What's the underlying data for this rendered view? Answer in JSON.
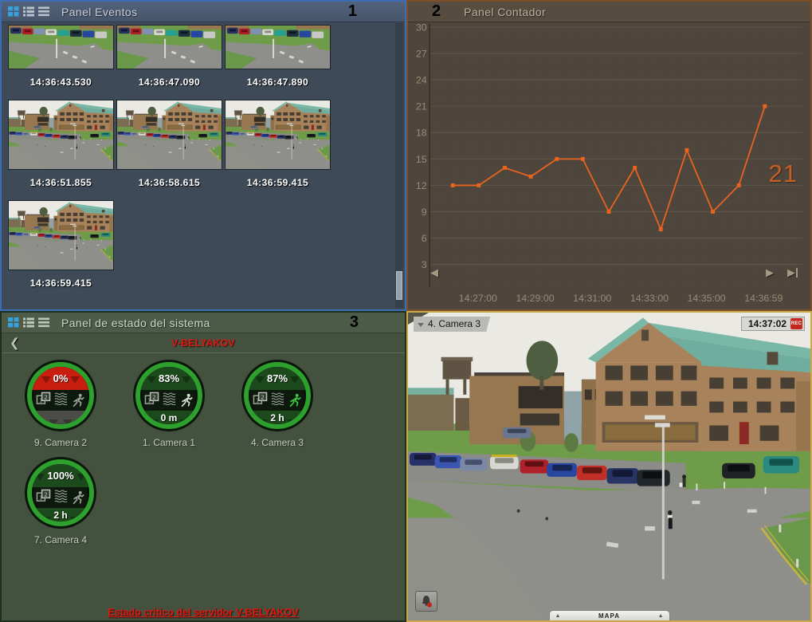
{
  "colors": {
    "eventos_accent": "#3d6db5",
    "contador_accent": "#7c4f28",
    "estado_accent": "#2e4f2e",
    "camera_accent": "#c9a94b",
    "chart_line": "#e8641e",
    "alert_red": "#e01810",
    "status_ok_green": "#2da02d",
    "status_alarm_red": "#c81e10"
  },
  "panels": {
    "eventos": {
      "number": "1",
      "title": "Panel Eventos",
      "events": [
        {
          "time": "14:36:43.530",
          "scene": "parking"
        },
        {
          "time": "14:36:47.090",
          "scene": "parking"
        },
        {
          "time": "14:36:47.890",
          "scene": "parking"
        },
        {
          "time": "14:36:51.855",
          "scene": "building"
        },
        {
          "time": "14:36:58.615",
          "scene": "building"
        },
        {
          "time": "14:36:59.415",
          "scene": "building"
        },
        {
          "time": "14:36:59.415",
          "scene": "building"
        }
      ]
    },
    "contador": {
      "number": "2",
      "title": "Panel Contador",
      "current_value": "21"
    },
    "estado": {
      "number": "3",
      "title": "Panel de estado del sistema",
      "server_name": "V-BELYAKOV",
      "alert_text": "Estado critico del servidor V-BELYAKOV",
      "gauges": [
        {
          "label": "9. Camera 2",
          "top_value": "0%",
          "top_color": "#c81e10",
          "bottom_value": "",
          "bottom_color": "#4c4c48",
          "man_color": "#9aa29a"
        },
        {
          "label": "1. Camera 1",
          "top_value": "83%",
          "top_color": "#1d4a1d",
          "bottom_value": "0 m",
          "bottom_color": "#1d4a1d",
          "man_color": "#d8ded6"
        },
        {
          "label": "4. Camera 3",
          "top_value": "87%",
          "top_color": "#1d4a1d",
          "bottom_value": "2 h",
          "bottom_color": "#1d4a1d",
          "man_color": "#3ec43e"
        },
        {
          "label": "7. Camera 4",
          "top_value": "100%",
          "top_color": "#1d4a1d",
          "bottom_value": "2 h",
          "bottom_color": "#1d4a1d",
          "man_color": "#9aa29a"
        }
      ]
    },
    "camera": {
      "label": "4. Camera 3",
      "time": "14:37:02",
      "rec_label": "REC",
      "map_label": "MAPA"
    }
  },
  "chart_data": {
    "type": "line",
    "title": "Panel Contador",
    "values": [
      12,
      12,
      14,
      13,
      15,
      15,
      9,
      14,
      7,
      16,
      9,
      12,
      21
    ],
    "x_tick_labels": [
      "14:27:00",
      "14:29:00",
      "14:31:00",
      "14:33:00",
      "14:35:00",
      "14:36:59"
    ],
    "y_ticks": [
      3,
      6,
      9,
      12,
      15,
      18,
      21,
      24,
      27,
      30
    ],
    "ylim": [
      0.6,
      30.4
    ],
    "current_value": 21,
    "line_color": "#e8641e",
    "value_label_color": "#c75f22",
    "grid": true,
    "legend": ""
  }
}
